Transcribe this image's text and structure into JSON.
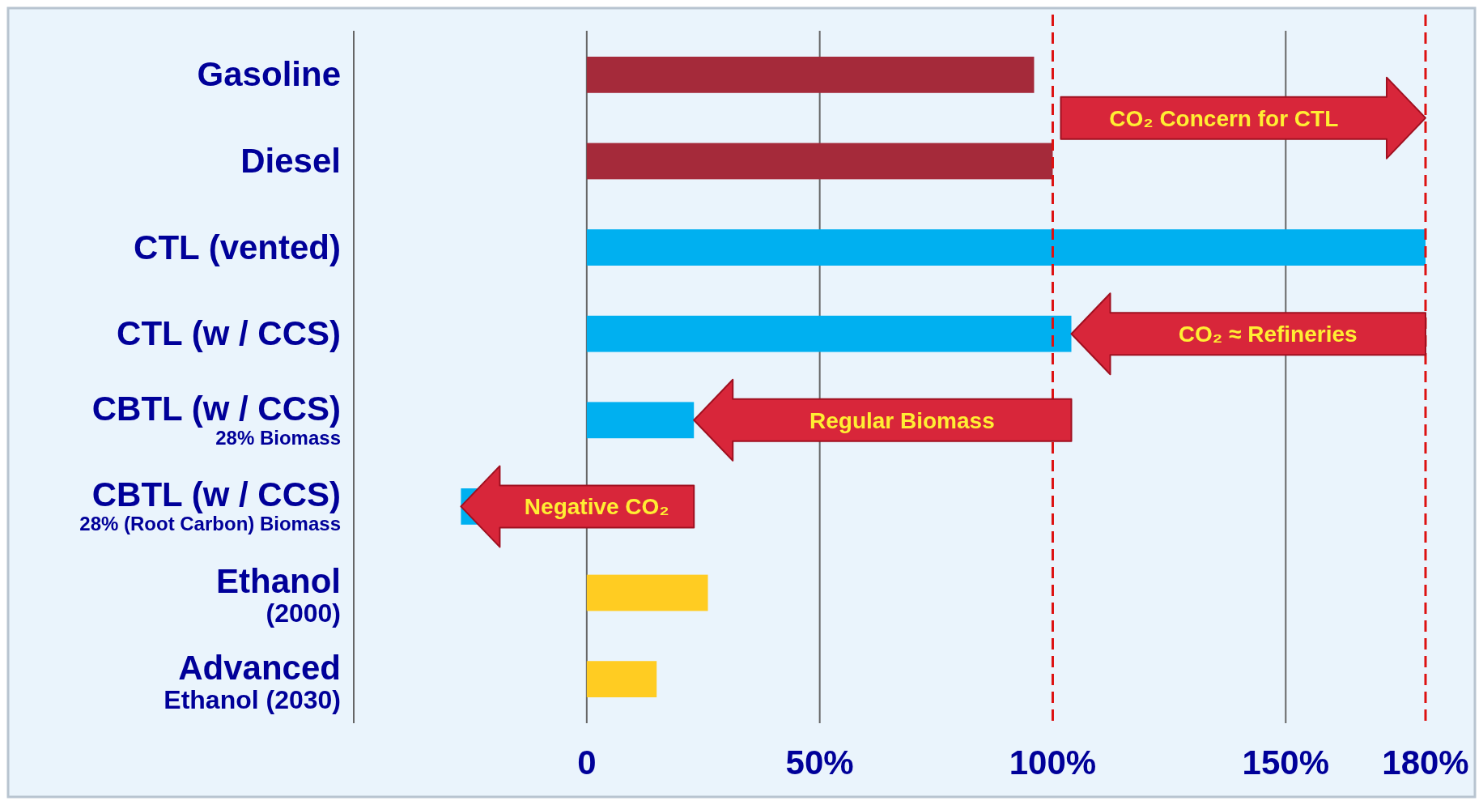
{
  "chart_data": {
    "type": "bar",
    "orientation": "horizontal",
    "categories": [
      "Gasoline",
      "Diesel",
      "CTL (vented)",
      "CTL (w / CCS)",
      "CBTL (w / CCS)\n28% Biomass",
      "CBTL (w / CCS)\n28% (Root Carbon) Biomass",
      "Ethanol\n(2000)",
      "Advanced\nEthanol (2030)"
    ],
    "values": [
      96,
      100,
      180,
      104,
      23,
      -27,
      26,
      15
    ],
    "colors": [
      "#a52a3a",
      "#a52a3a",
      "#00b0f0",
      "#00b0f0",
      "#00b0f0",
      "#00b0f0",
      "#ffcc22",
      "#ffcc22"
    ],
    "xlim": [
      -50,
      180
    ],
    "xticks": [
      {
        "value": 0,
        "label": "0"
      },
      {
        "value": 50,
        "label": "50%"
      },
      {
        "value": 100,
        "label": "100%"
      },
      {
        "value": 150,
        "label": "150%"
      },
      {
        "value": 180,
        "label": "180%"
      }
    ],
    "grid": "x",
    "ref_lines": [
      {
        "axis": "x",
        "value": 100,
        "color": "#dd1111",
        "line_style": "dashed"
      },
      {
        "axis": "x",
        "value": 180,
        "color": "#dd1111",
        "line_style": "dashed"
      }
    ],
    "annotations": [
      "CO₂ Concern for CTL",
      "CO₂ ≈ Refineries",
      "Regular Biomass",
      {
        "text": "Negative CO₂",
        "x": -27,
        "y": "CBTL (w / CCS)\n28% (Root Carbon) Biomass"
      }
    ]
  }
}
